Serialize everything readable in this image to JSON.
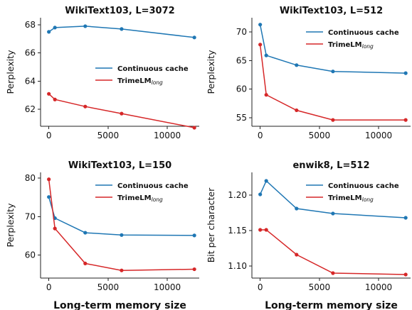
{
  "chart_data": [
    {
      "type": "line",
      "title": "WikiText103, L=3072",
      "ylabel": "Perplexity",
      "xlabel": "",
      "xlim": [
        -700,
        12700
      ],
      "ylim": [
        60.8,
        68.5
      ],
      "xticks": [
        0,
        5000,
        10000
      ],
      "yticks": [
        62,
        64,
        66,
        68
      ],
      "legend": "center-right",
      "series": [
        {
          "name": "Continuous cache",
          "name_sub": "",
          "color": "#1f77b4",
          "x": [
            0,
            512,
            3072,
            6144,
            12288
          ],
          "y": [
            67.5,
            67.8,
            67.9,
            67.7,
            67.1
          ]
        },
        {
          "name": "TrimeLM",
          "name_sub": "long",
          "color": "#d62728",
          "x": [
            0,
            512,
            3072,
            6144,
            12288
          ],
          "y": [
            63.1,
            62.7,
            62.2,
            61.7,
            60.7
          ]
        }
      ]
    },
    {
      "type": "line",
      "title": "WikiText103, L=512",
      "ylabel": "Perplexity",
      "xlabel": "",
      "xlim": [
        -700,
        12700
      ],
      "ylim": [
        53.5,
        72.5
      ],
      "xticks": [
        0,
        5000,
        10000
      ],
      "yticks": [
        55,
        60,
        65,
        70
      ],
      "legend": "top-right",
      "series": [
        {
          "name": "Continuous cache",
          "name_sub": "",
          "color": "#1f77b4",
          "x": [
            0,
            512,
            3072,
            6144,
            12288
          ],
          "y": [
            71.3,
            65.9,
            64.2,
            63.1,
            62.8
          ]
        },
        {
          "name": "TrimeLM",
          "name_sub": "long",
          "color": "#d62728",
          "x": [
            0,
            512,
            3072,
            6144,
            12288
          ],
          "y": [
            67.8,
            59.0,
            56.3,
            54.6,
            54.6
          ]
        }
      ]
    },
    {
      "type": "line",
      "title": "WikiText103, L=150",
      "ylabel": "Perplexity",
      "xlabel": "Long-term memory size",
      "xlim": [
        -700,
        12700
      ],
      "ylim": [
        54,
        81.5
      ],
      "xticks": [
        0,
        5000,
        10000
      ],
      "yticks": [
        60,
        70,
        80
      ],
      "legend": "top-right",
      "series": [
        {
          "name": "Continuous cache",
          "name_sub": "",
          "color": "#1f77b4",
          "x": [
            0,
            512,
            3072,
            6144,
            12288
          ],
          "y": [
            75.1,
            69.6,
            65.8,
            65.2,
            65.1
          ]
        },
        {
          "name": "TrimeLM",
          "name_sub": "long",
          "color": "#d62728",
          "x": [
            0,
            512,
            3072,
            6144,
            12288
          ],
          "y": [
            79.7,
            66.9,
            57.8,
            56.0,
            56.3
          ]
        }
      ]
    },
    {
      "type": "line",
      "title": "enwik8, L=512",
      "ylabel": "Bit per character",
      "xlabel": "Long-term memory size",
      "xlim": [
        -700,
        12700
      ],
      "ylim": [
        1.083,
        1.232
      ],
      "xticks": [
        0,
        5000,
        10000
      ],
      "yticks": [
        1.1,
        1.15,
        1.2
      ],
      "yticklabels": [
        "1.10",
        "1.15",
        "1.20"
      ],
      "legend": "top-right",
      "series": [
        {
          "name": "Continuous cache",
          "name_sub": "",
          "color": "#1f77b4",
          "x": [
            0,
            512,
            3072,
            6144,
            12288
          ],
          "y": [
            1.201,
            1.22,
            1.181,
            1.174,
            1.168
          ]
        },
        {
          "name": "TrimeLM",
          "name_sub": "long",
          "color": "#d62728",
          "x": [
            0,
            512,
            3072,
            6144,
            12288
          ],
          "y": [
            1.151,
            1.151,
            1.116,
            1.09,
            1.088
          ]
        }
      ]
    }
  ]
}
